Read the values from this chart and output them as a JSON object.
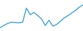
{
  "x": [
    0,
    1,
    2,
    3,
    4,
    5,
    6,
    7,
    8,
    9,
    10,
    11,
    12,
    13,
    14,
    15,
    16,
    17,
    18,
    19,
    20,
    21,
    22
  ],
  "y": [
    1.5,
    2.2,
    2.8,
    3.2,
    3.1,
    3.0,
    3.2,
    7.5,
    5.5,
    6.2,
    5.2,
    4.2,
    2.2,
    3.8,
    2.0,
    2.5,
    3.5,
    4.5,
    5.2,
    6.0,
    6.8,
    7.8,
    8.5
  ],
  "line_color": "#2196d6",
  "linewidth": 0.9,
  "background_color": "#ffffff",
  "ylim": [
    0.5,
    10
  ],
  "xlim": [
    0,
    22
  ]
}
